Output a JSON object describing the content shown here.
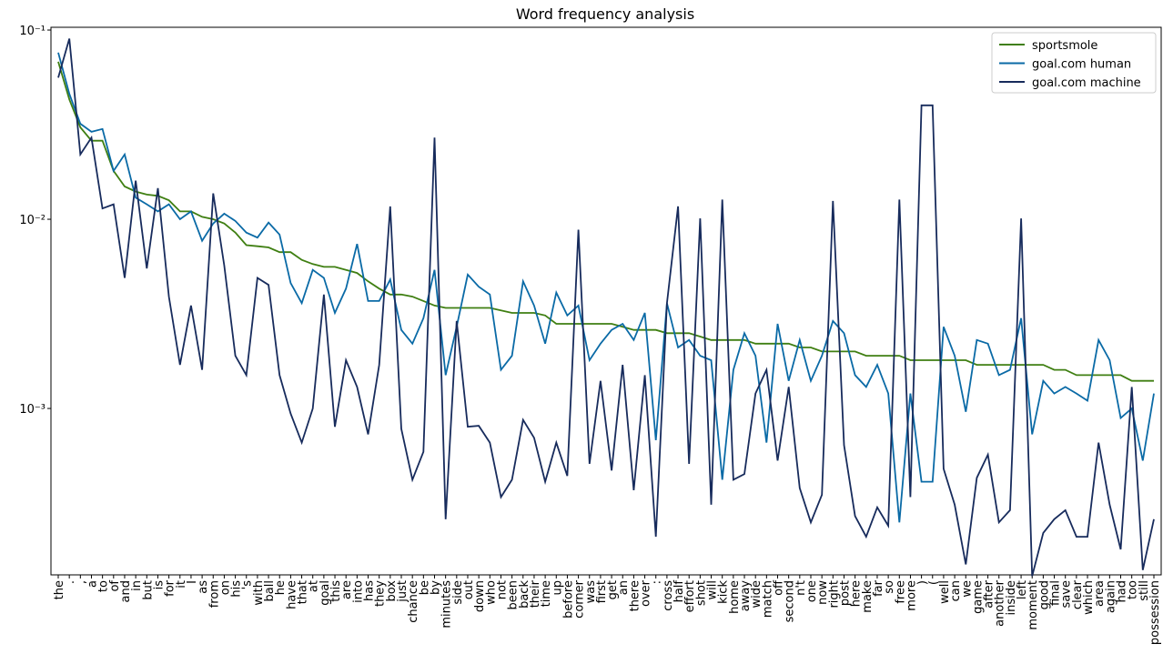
{
  "chart_data": {
    "type": "line",
    "title": "Word frequency analysis",
    "categories": [
      "the",
      ".",
      ",",
      "a",
      "to",
      "of",
      "and",
      "in",
      "but",
      "is",
      "for",
      "it",
      "I",
      "as",
      "from",
      "on",
      "his",
      "'s",
      "with",
      "ball",
      "he",
      "have",
      "that",
      "at",
      "goal",
      "this",
      "are",
      "into",
      "has",
      "they",
      "box",
      "just",
      "chance",
      "be",
      "by",
      "minutes",
      "side",
      "out",
      "down",
      "who",
      "not",
      "been",
      "back",
      "their",
      "time",
      "up",
      "before",
      "corner",
      "was",
      "first",
      "get",
      "an",
      "there",
      "over",
      ":",
      "cross",
      "half",
      "effort",
      "shot",
      "will",
      "kick",
      "home",
      "away",
      "wide",
      "match",
      "off",
      "second",
      "n't",
      "one",
      "now",
      "right",
      "post",
      "here",
      "make",
      "far",
      "so",
      "free",
      "more",
      ")",
      "(",
      "well",
      "can",
      "we",
      "game",
      "after",
      "another",
      "inside",
      "left",
      "moment",
      "good",
      "final",
      "save",
      "clear",
      "which",
      "area",
      "again",
      "had",
      "too",
      "still",
      "possession"
    ],
    "series": [
      {
        "name": "sportsmole",
        "color": "#3f7f12",
        "values": [
          0.068,
          0.043,
          0.0306,
          0.026,
          0.026,
          0.018,
          0.0149,
          0.014,
          0.0135,
          0.0133,
          0.0126,
          0.011,
          0.011,
          0.0103,
          0.01,
          0.0095,
          0.0085,
          0.0073,
          0.0072,
          0.0071,
          0.0067,
          0.0067,
          0.0061,
          0.0058,
          0.0056,
          0.0056,
          0.0054,
          0.0052,
          0.0047,
          0.0043,
          0.004,
          0.004,
          0.0039,
          0.0037,
          0.0035,
          0.0034,
          0.0034,
          0.0034,
          0.0034,
          0.0034,
          0.0033,
          0.0032,
          0.0032,
          0.0032,
          0.0031,
          0.0028,
          0.0028,
          0.0028,
          0.0028,
          0.0028,
          0.0028,
          0.0027,
          0.0026,
          0.0026,
          0.0026,
          0.0025,
          0.0025,
          0.0025,
          0.0024,
          0.0023,
          0.0023,
          0.0023,
          0.0023,
          0.0022,
          0.0022,
          0.0022,
          0.0022,
          0.0021,
          0.0021,
          0.002,
          0.002,
          0.002,
          0.002,
          0.0019,
          0.0019,
          0.0019,
          0.0019,
          0.0018,
          0.0018,
          0.0018,
          0.0018,
          0.0018,
          0.0018,
          0.0017,
          0.0017,
          0.0017,
          0.0017,
          0.0017,
          0.0017,
          0.0017,
          0.0016,
          0.0016,
          0.0015,
          0.0015,
          0.0015,
          0.0015,
          0.0015,
          0.0014,
          0.0014,
          0.0014
        ]
      },
      {
        "name": "goal.com human",
        "color": "#0a6aa6",
        "values": [
          0.076,
          0.046,
          0.032,
          0.029,
          0.03,
          0.018,
          0.022,
          0.013,
          0.012,
          0.011,
          0.012,
          0.01,
          0.011,
          0.0077,
          0.0095,
          0.0107,
          0.0098,
          0.0085,
          0.008,
          0.0096,
          0.0083,
          0.0046,
          0.0036,
          0.0054,
          0.0049,
          0.0032,
          0.0043,
          0.0074,
          0.0037,
          0.0037,
          0.0048,
          0.0026,
          0.0022,
          0.003,
          0.0054,
          0.0015,
          0.0027,
          0.0051,
          0.0044,
          0.004,
          0.0016,
          0.0019,
          0.0047,
          0.0035,
          0.0022,
          0.0041,
          0.0031,
          0.0035,
          0.0018,
          0.0022,
          0.0026,
          0.0028,
          0.0023,
          0.0032,
          0.00068,
          0.0036,
          0.0021,
          0.0023,
          0.0019,
          0.0018,
          0.00042,
          0.0016,
          0.0025,
          0.0019,
          0.00066,
          0.0028,
          0.0014,
          0.0023,
          0.0014,
          0.0019,
          0.0029,
          0.0025,
          0.0015,
          0.0013,
          0.0017,
          0.0012,
          0.00025,
          0.0012,
          0.00041,
          0.00041,
          0.0027,
          0.0019,
          0.00096,
          0.0023,
          0.0022,
          0.0015,
          0.0016,
          0.003,
          0.00073,
          0.0014,
          0.0012,
          0.0013,
          0.0012,
          0.0011,
          0.0023,
          0.0018,
          0.00089,
          0.001,
          0.00053,
          0.0012
        ]
      },
      {
        "name": "goal.com machine",
        "color": "#172b5c",
        "values": [
          0.056,
          0.09,
          0.022,
          0.027,
          0.0114,
          0.012,
          0.0049,
          0.016,
          0.0055,
          0.0146,
          0.0039,
          0.0017,
          0.0035,
          0.0016,
          0.0137,
          0.0057,
          0.0019,
          0.0015,
          0.0049,
          0.0045,
          0.0015,
          0.00094,
          0.00066,
          0.001,
          0.004,
          0.0008,
          0.0018,
          0.0013,
          0.00073,
          0.0017,
          0.0117,
          0.00078,
          0.00042,
          0.00059,
          0.027,
          0.00026,
          0.0029,
          0.0008,
          0.00081,
          0.00066,
          0.00034,
          0.00042,
          0.00087,
          0.0007,
          0.00041,
          0.00066,
          0.00044,
          0.0088,
          0.00051,
          0.0014,
          0.00047,
          0.0017,
          0.00037,
          0.0015,
          0.00021,
          0.0036,
          0.0117,
          0.00051,
          0.0101,
          0.00031,
          0.0127,
          0.00042,
          0.00045,
          0.0012,
          0.0016,
          0.00053,
          0.0013,
          0.00038,
          0.00025,
          0.00035,
          0.0125,
          0.00064,
          0.00027,
          0.00021,
          0.0003,
          0.00024,
          0.0127,
          0.00034,
          0.04,
          0.04,
          0.00048,
          0.00031,
          0.00015,
          0.00043,
          0.00057,
          0.00025,
          0.00029,
          0.0101,
          0.00013,
          0.00022,
          0.00026,
          0.00029,
          0.00021,
          0.00021,
          0.00066,
          0.00031,
          0.00018,
          0.0013,
          0.00014,
          0.00026
        ]
      }
    ],
    "log_y": true,
    "ylim": [
      0.000132,
      0.1034
    ],
    "yticks": [
      {
        "value": 0.001,
        "label": "10⁻³"
      },
      {
        "value": 0.01,
        "label": "10⁻²"
      },
      {
        "value": 0.1,
        "label": "10⁻¹"
      }
    ],
    "legend": "upper right"
  }
}
